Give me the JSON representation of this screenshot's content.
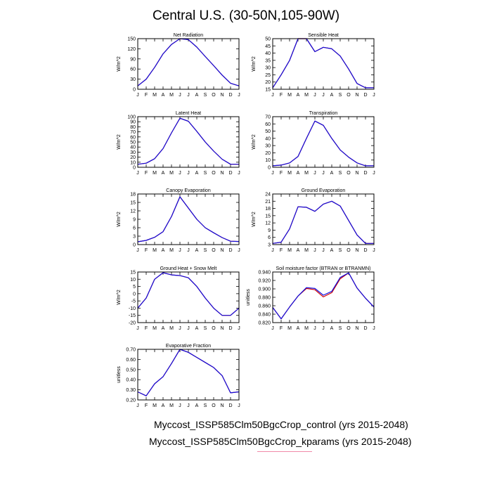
{
  "title": "Central U.S. (30-50N,105-90W)",
  "colors": {
    "control": "#d20000",
    "kparams": "#1010e0"
  },
  "legend": [
    {
      "label": "Myccost_ISSP585Clm50BgcCrop_control (yrs 2015-2048)",
      "color": "#d20000"
    },
    {
      "label": "Myccost_ISSP585Clm50BgcCrop_kparams (yrs 2015-2048)",
      "color": "#1010e0"
    }
  ],
  "chart_data": [
    {
      "type": "line",
      "title": "Net Radiation",
      "ylabel": "W/m^2",
      "x": [
        "J",
        "F",
        "M",
        "A",
        "M",
        "J",
        "J",
        "A",
        "S",
        "O",
        "N",
        "D",
        "J"
      ],
      "ylim": [
        0,
        150
      ],
      "yticks": [
        0,
        30,
        60,
        90,
        120,
        150
      ],
      "series": [
        {
          "name": "Myccost_ISSP585Clm50BgcCrop_control",
          "values": [
            10,
            30,
            65,
            105,
            133,
            150,
            147,
            125,
            97,
            70,
            42,
            18,
            10
          ]
        },
        {
          "name": "Myccost_ISSP585Clm50BgcCrop_kparams",
          "values": [
            10,
            30,
            65,
            105,
            133,
            150,
            147,
            125,
            97,
            70,
            42,
            18,
            10
          ]
        }
      ]
    },
    {
      "type": "line",
      "title": "Sensible Heat",
      "ylabel": "W/m^2",
      "x": [
        "J",
        "F",
        "M",
        "A",
        "M",
        "J",
        "J",
        "A",
        "S",
        "O",
        "N",
        "D",
        "J"
      ],
      "ylim": [
        15,
        50
      ],
      "yticks": [
        15,
        20,
        25,
        30,
        35,
        40,
        45,
        50
      ],
      "series": [
        {
          "name": "Myccost_ISSP585Clm50BgcCrop_control",
          "values": [
            16,
            25,
            35,
            50,
            50,
            41,
            44,
            43,
            38,
            29,
            19,
            16,
            16
          ]
        },
        {
          "name": "Myccost_ISSP585Clm50BgcCrop_kparams",
          "values": [
            16,
            25,
            35,
            50,
            50,
            41,
            44,
            43,
            38,
            29,
            19,
            16,
            16
          ]
        }
      ]
    },
    {
      "type": "line",
      "title": "Latent Heat",
      "ylabel": "W/m^2",
      "x": [
        "J",
        "F",
        "M",
        "A",
        "M",
        "J",
        "J",
        "A",
        "S",
        "O",
        "N",
        "D",
        "J"
      ],
      "ylim": [
        0,
        100
      ],
      "yticks": [
        0,
        10,
        20,
        30,
        40,
        50,
        60,
        70,
        80,
        90,
        100
      ],
      "series": [
        {
          "name": "Myccost_ISSP585Clm50BgcCrop_control",
          "values": [
            6,
            8,
            17,
            37,
            68,
            97,
            91,
            71,
            50,
            32,
            16,
            6,
            6
          ]
        },
        {
          "name": "Myccost_ISSP585Clm50BgcCrop_kparams",
          "values": [
            6,
            8,
            17,
            37,
            68,
            97,
            91,
            71,
            50,
            32,
            16,
            6,
            6
          ]
        }
      ]
    },
    {
      "type": "line",
      "title": "Transpiration",
      "ylabel": "W/m^2",
      "x": [
        "J",
        "F",
        "M",
        "A",
        "M",
        "J",
        "J",
        "A",
        "S",
        "O",
        "N",
        "D",
        "J"
      ],
      "ylim": [
        0,
        70
      ],
      "yticks": [
        0,
        10,
        20,
        30,
        40,
        50,
        60,
        70
      ],
      "series": [
        {
          "name": "Myccost_ISSP585Clm50BgcCrop_control",
          "values": [
            2,
            3,
            6,
            15,
            40,
            64,
            58,
            40,
            24,
            14,
            6,
            2,
            2
          ]
        },
        {
          "name": "Myccost_ISSP585Clm50BgcCrop_kparams",
          "values": [
            2,
            3,
            6,
            15,
            40,
            64,
            58,
            40,
            24,
            14,
            6,
            2,
            2
          ]
        }
      ]
    },
    {
      "type": "line",
      "title": "Canopy Evaporation",
      "ylabel": "W/m^2",
      "x": [
        "J",
        "F",
        "M",
        "A",
        "M",
        "J",
        "J",
        "A",
        "S",
        "O",
        "N",
        "D",
        "J"
      ],
      "ylim": [
        0,
        18
      ],
      "yticks": [
        0,
        3,
        6,
        9,
        12,
        15,
        18
      ],
      "series": [
        {
          "name": "Myccost_ISSP585Clm50BgcCrop_control",
          "values": [
            1,
            1.5,
            2.6,
            4.6,
            10,
            17,
            13,
            9,
            6,
            4.2,
            2.5,
            1.2,
            1.1
          ]
        },
        {
          "name": "Myccost_ISSP585Clm50BgcCrop_kparams",
          "values": [
            1,
            1.5,
            2.6,
            4.6,
            10,
            17,
            13,
            9,
            6,
            4.2,
            2.5,
            1.2,
            1.1
          ]
        }
      ]
    },
    {
      "type": "line",
      "title": "Ground Evaporation",
      "ylabel": "W/m^2",
      "x": [
        "J",
        "F",
        "M",
        "A",
        "M",
        "J",
        "J",
        "A",
        "S",
        "O",
        "N",
        "D",
        "J"
      ],
      "ylim": [
        3,
        24
      ],
      "yticks": [
        3,
        6,
        9,
        12,
        15,
        18,
        21,
        24
      ],
      "series": [
        {
          "name": "Myccost_ISSP585Clm50BgcCrop_control",
          "values": [
            3.5,
            4,
            9.5,
            18.7,
            18.5,
            16.8,
            19.8,
            21,
            19,
            13,
            7,
            3.5,
            3.5
          ]
        },
        {
          "name": "Myccost_ISSP585Clm50BgcCrop_kparams",
          "values": [
            3.5,
            4,
            9.5,
            18.7,
            18.5,
            16.8,
            19.8,
            21,
            19,
            13,
            7,
            3.5,
            3.5
          ]
        }
      ]
    },
    {
      "type": "line",
      "title": "Ground Heat + Snow Melt",
      "ylabel": "W/m^2",
      "x": [
        "J",
        "F",
        "M",
        "A",
        "M",
        "J",
        "J",
        "A",
        "S",
        "O",
        "N",
        "D",
        "J"
      ],
      "ylim": [
        -20,
        15
      ],
      "yticks": [
        -20,
        -15,
        -10,
        -5,
        0,
        5,
        10,
        15
      ],
      "series": [
        {
          "name": "Myccost_ISSP585Clm50BgcCrop_control",
          "values": [
            -10,
            -3,
            10,
            14.5,
            13,
            12.5,
            11,
            5,
            -3,
            -10,
            -15,
            -15,
            -10
          ]
        },
        {
          "name": "Myccost_ISSP585Clm50BgcCrop_kparams",
          "values": [
            -10,
            -3,
            10,
            14.5,
            13,
            12.5,
            11,
            5,
            -3,
            -10,
            -15,
            -15,
            -10
          ]
        }
      ]
    },
    {
      "type": "line",
      "title": "Soil moisture factor (BTRAN or BTRANMN)",
      "ylabel": "unitless",
      "x": [
        "J",
        "F",
        "M",
        "A",
        "M",
        "J",
        "J",
        "A",
        "S",
        "O",
        "N",
        "D",
        "J"
      ],
      "ylim": [
        0.82,
        0.94
      ],
      "yticks": [
        0.82,
        0.84,
        0.86,
        0.88,
        0.9,
        0.92,
        0.94
      ],
      "ytickfmt": 3,
      "series": [
        {
          "name": "Myccost_ISSP585Clm50BgcCrop_control",
          "values": [
            0.856,
            0.829,
            0.857,
            0.883,
            0.901,
            0.898,
            0.881,
            0.891,
            0.924,
            0.938,
            0.902,
            0.878,
            0.857
          ]
        },
        {
          "name": "Myccost_ISSP585Clm50BgcCrop_kparams",
          "values": [
            0.856,
            0.829,
            0.857,
            0.883,
            0.903,
            0.901,
            0.885,
            0.894,
            0.927,
            0.938,
            0.902,
            0.878,
            0.857
          ]
        }
      ]
    },
    {
      "type": "line",
      "title": "Evaporative Fraction",
      "ylabel": "unitless",
      "x": [
        "J",
        "F",
        "M",
        "A",
        "M",
        "J",
        "J",
        "A",
        "S",
        "O",
        "N",
        "D",
        "J"
      ],
      "ylim": [
        0.2,
        0.7
      ],
      "yticks": [
        0.2,
        0.3,
        0.4,
        0.5,
        0.6,
        0.7
      ],
      "ytickfmt": 2,
      "series": [
        {
          "name": "Myccost_ISSP585Clm50BgcCrop_control",
          "values": [
            0.28,
            0.24,
            0.36,
            0.43,
            0.56,
            0.7,
            0.67,
            0.62,
            0.57,
            0.52,
            0.44,
            0.27,
            0.28
          ]
        },
        {
          "name": "Myccost_ISSP585Clm50BgcCrop_kparams",
          "values": [
            0.28,
            0.24,
            0.36,
            0.43,
            0.56,
            0.7,
            0.67,
            0.62,
            0.57,
            0.52,
            0.44,
            0.27,
            0.28
          ]
        }
      ]
    }
  ]
}
